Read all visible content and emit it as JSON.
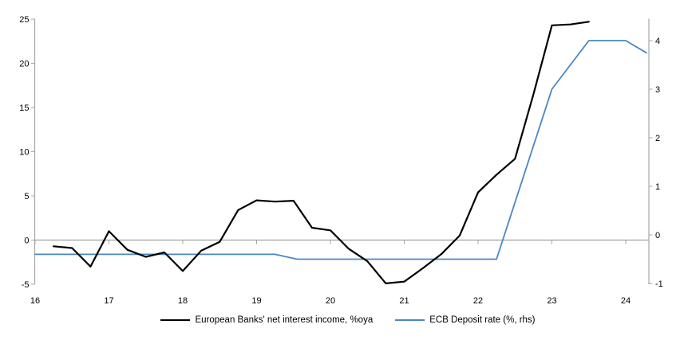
{
  "chart_data": {
    "type": "line",
    "title": "",
    "grid": "zero-line-only",
    "legend_position": "bottom-center",
    "x_axis": {
      "ticks": [
        16,
        17,
        18,
        19,
        20,
        21,
        22,
        23,
        24
      ],
      "range": [
        16,
        24.32
      ]
    },
    "y_axis_left": {
      "ticks": [
        -5,
        0,
        5,
        10,
        15,
        20,
        25
      ],
      "range": [
        -5,
        25
      ]
    },
    "y_axis_right": {
      "ticks": [
        -1,
        0,
        1,
        2,
        3,
        4
      ],
      "range": [
        -1,
        4.18
      ]
    },
    "series": [
      {
        "name": "European Banks' net interest income, %oya",
        "axis": "left",
        "color": "#000000",
        "stroke_width": 2.2,
        "x": [
          16.25,
          16.5,
          16.75,
          17.0,
          17.25,
          17.5,
          17.75,
          18.0,
          18.25,
          18.5,
          18.75,
          19.0,
          19.25,
          19.5,
          19.75,
          20.0,
          20.25,
          20.5,
          20.75,
          21.0,
          21.25,
          21.5,
          21.75,
          22.0,
          22.25,
          22.5,
          22.75,
          23.0,
          23.25,
          23.5
        ],
        "values": [
          -0.7,
          -0.9,
          -3.0,
          1.0,
          -1.1,
          -1.9,
          -1.4,
          -3.5,
          -1.2,
          -0.2,
          3.4,
          4.5,
          4.35,
          4.45,
          1.4,
          1.1,
          -1.0,
          -2.4,
          -4.9,
          -4.7,
          -3.2,
          -1.6,
          0.5,
          5.4,
          7.4,
          9.2,
          16.5,
          24.3,
          24.4,
          24.7
        ]
      },
      {
        "name": "ECB Deposit rate (%, rhs)",
        "axis": "right",
        "color": "#4a86c4",
        "stroke_width": 1.8,
        "x": [
          16.0,
          19.25,
          19.55,
          22.25,
          23.0,
          23.5,
          24.0,
          24.28
        ],
        "values": [
          -0.4,
          -0.4,
          -0.5,
          -0.5,
          3.0,
          4.0,
          4.0,
          3.75
        ]
      }
    ]
  },
  "colors": {
    "axis_gray": "#a6a6a6",
    "zero_line_gray": "#a0a0a0"
  }
}
